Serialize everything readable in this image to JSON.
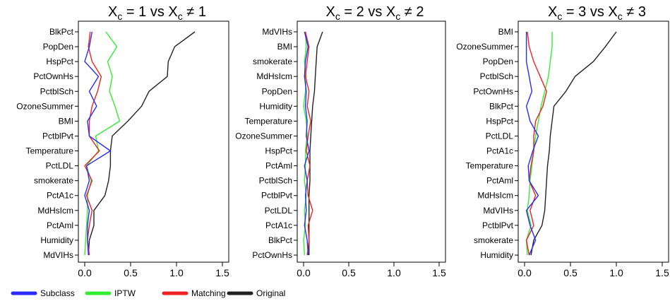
{
  "legend": [
    {
      "name": "Subclass",
      "color": "#2b2bff"
    },
    {
      "name": "IPTW",
      "color": "#33ee33"
    },
    {
      "name": "Matching",
      "color": "#ee2222"
    },
    {
      "name": "Original",
      "color": "#222222"
    }
  ],
  "chart_data": [
    {
      "type": "line",
      "title": "X_c = 1 vs X_c ≠ 1",
      "title_parts": {
        "base": "X",
        "sub": "c",
        "mid": " = 1 vs ",
        "base2": "X",
        "sub2": "c",
        "tail": " ≠ 1"
      },
      "xlim": [
        0,
        1.5
      ],
      "xticks": [
        "0.0",
        "0.5",
        "1.0",
        "1.5"
      ],
      "categories": [
        "BlkPct",
        "PopDen",
        "HspPct",
        "PctOwnHs",
        "PctblSch",
        "OzoneSummer",
        "BMI",
        "PctblPvt",
        "Temperature",
        "PctLDL",
        "smokerate",
        "PctA1c",
        "MdHsIcm",
        "PctAml",
        "Humidity",
        "MdVIHs"
      ],
      "series": [
        {
          "name": "Subclass",
          "values": [
            0.08,
            0.05,
            0.0,
            0.15,
            0.05,
            0.13,
            0.03,
            0.05,
            0.28,
            0.02,
            0.05,
            0.0,
            0.05,
            0.03,
            0.03,
            0.04
          ]
        },
        {
          "name": "IPTW",
          "values": [
            0.23,
            0.35,
            0.25,
            0.3,
            0.27,
            0.33,
            0.38,
            0.12,
            0.15,
            0.02,
            0.07,
            0.03,
            0.03,
            0.02,
            0.01,
            0.0
          ]
        },
        {
          "name": "Matching",
          "values": [
            0.06,
            0.04,
            0.08,
            0.18,
            0.14,
            0.08,
            0.05,
            0.05,
            0.16,
            0.0,
            0.08,
            0.02,
            0.08,
            0.05,
            0.03,
            0.05
          ]
        },
        {
          "name": "Original",
          "values": [
            1.2,
            0.98,
            0.91,
            0.9,
            0.7,
            0.62,
            0.47,
            0.3,
            0.28,
            0.28,
            0.26,
            0.22,
            0.1,
            0.1,
            0.05,
            0.04
          ]
        }
      ]
    },
    {
      "type": "line",
      "title": "X_c = 2 vs X_c ≠ 2",
      "title_parts": {
        "base": "X",
        "sub": "c",
        "mid": " = 2 vs ",
        "base2": "X",
        "sub2": "c",
        "tail": " ≠ 2"
      },
      "xlim": [
        0,
        1.5
      ],
      "xticks": [
        "0.0",
        "0.5",
        "1.0",
        "1.5"
      ],
      "categories": [
        "MdVIHs",
        "BMI",
        "smokerate",
        "MdHsIcm",
        "PopDen",
        "Humidity",
        "Temperature",
        "OzoneSummer",
        "HspPct",
        "PctAml",
        "PctblSch",
        "PctblPvt",
        "PctLDL",
        "PctA1c",
        "BlkPct",
        "PctOwnHs"
      ],
      "series": [
        {
          "name": "Subclass",
          "values": [
            0.01,
            0.05,
            0.02,
            0.01,
            0.03,
            0.02,
            0.04,
            0.03,
            0.06,
            0.01,
            0.04,
            0.02,
            0.03,
            0.01,
            0.04,
            0.05
          ]
        },
        {
          "name": "IPTW",
          "values": [
            0.02,
            0.03,
            0.01,
            0.03,
            0.02,
            0.0,
            0.03,
            0.04,
            0.02,
            0.02,
            0.01,
            0.03,
            0.01,
            0.02,
            0.0,
            0.01
          ]
        },
        {
          "name": "Matching",
          "values": [
            0.02,
            0.06,
            0.04,
            0.02,
            0.06,
            0.04,
            0.08,
            0.05,
            0.03,
            0.07,
            0.04,
            0.05,
            0.1,
            0.05,
            0.06,
            0.04
          ]
        },
        {
          "name": "Original",
          "values": [
            0.21,
            0.15,
            0.14,
            0.13,
            0.12,
            0.1,
            0.09,
            0.08,
            0.07,
            0.07,
            0.07,
            0.06,
            0.06,
            0.06,
            0.06,
            0.06
          ]
        }
      ]
    },
    {
      "type": "line",
      "title": "X_c = 3 vs X_c ≠ 3",
      "title_parts": {
        "base": "X",
        "sub": "c",
        "mid": " = 3 vs ",
        "base2": "X",
        "sub2": "c",
        "tail": " ≠ 3"
      },
      "xlim": [
        0,
        1.5
      ],
      "xticks": [
        "0.0",
        "0.5",
        "1.0",
        "1.5"
      ],
      "categories": [
        "BMI",
        "OzoneSummer",
        "PopDen",
        "PctblSch",
        "PctOwnHs",
        "BlkPct",
        "HspPct",
        "PctLDL",
        "PctA1c",
        "Temperature",
        "PctAml",
        "MdHsIcm",
        "MdVIHs",
        "PctblPvt",
        "smokerate",
        "Humidity"
      ],
      "series": [
        {
          "name": "Subclass",
          "values": [
            0.02,
            0.02,
            0.02,
            0.05,
            0.08,
            0.02,
            0.06,
            0.15,
            0.09,
            0.04,
            0.05,
            0.15,
            0.02,
            0.06,
            0.12,
            0.05
          ]
        },
        {
          "name": "IPTW",
          "values": [
            0.3,
            0.3,
            0.28,
            0.26,
            0.22,
            0.18,
            0.15,
            0.12,
            0.1,
            0.08,
            0.06,
            0.05,
            0.03,
            0.07,
            0.02,
            0.03
          ]
        },
        {
          "name": "Matching",
          "values": [
            0.03,
            0.05,
            0.1,
            0.17,
            0.24,
            0.2,
            0.12,
            0.1,
            0.1,
            0.07,
            0.05,
            0.12,
            0.06,
            0.1,
            0.02,
            0.05
          ]
        },
        {
          "name": "Original",
          "values": [
            1.0,
            0.88,
            0.75,
            0.55,
            0.45,
            0.32,
            0.3,
            0.28,
            0.27,
            0.25,
            0.24,
            0.23,
            0.22,
            0.19,
            0.1,
            0.07
          ]
        }
      ]
    }
  ]
}
